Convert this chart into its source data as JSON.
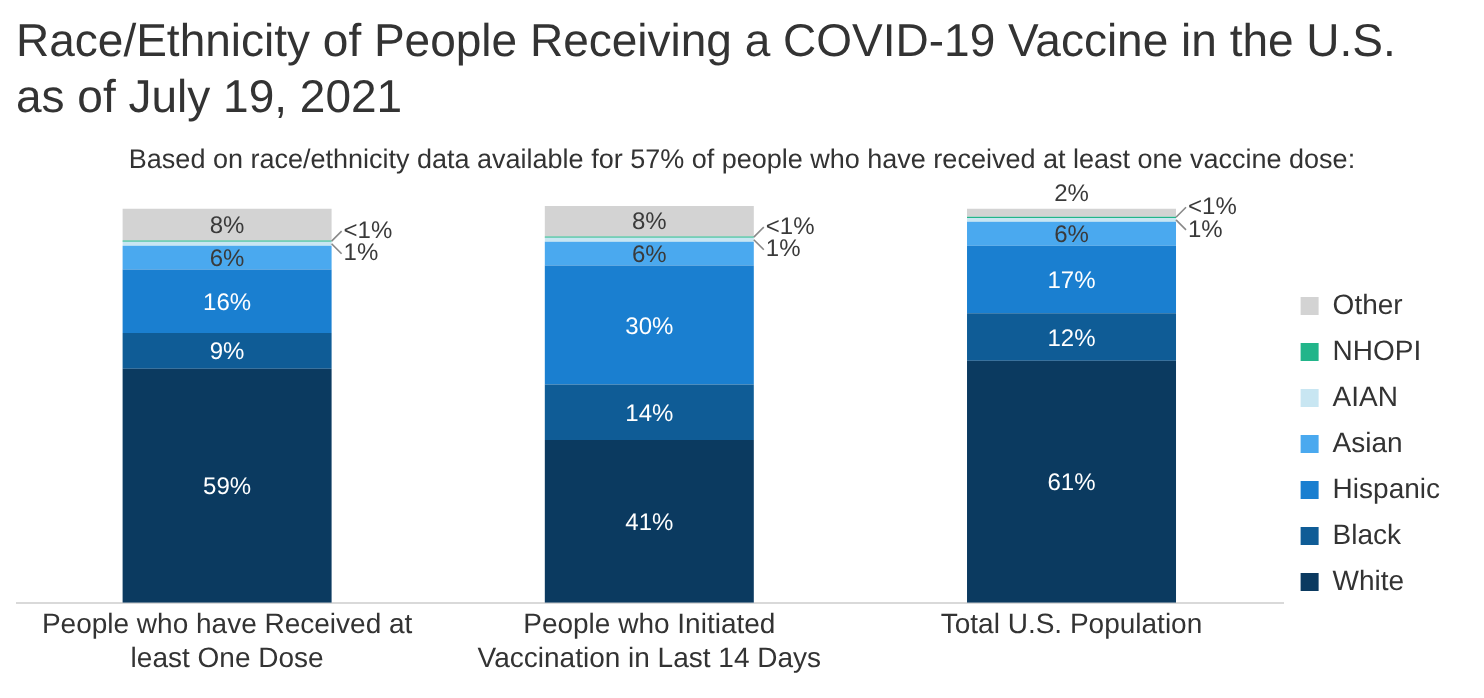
{
  "chart_data": {
    "type": "bar",
    "title": "Race/Ethnicity of People Receiving a COVID-19 Vaccine in the U.S. as of July 19, 2021",
    "subtitle": "Based on race/ethnicity data available for 57% of people who have received at least one vaccine dose:",
    "categories": [
      "People who have Received at least One Dose",
      "People who Initiated Vaccination in Last 14 Days",
      "Total U.S. Population"
    ],
    "stacked": true,
    "ylim": [
      0,
      100
    ],
    "tick_labels": "x",
    "legend": "right",
    "grid": false,
    "series": [
      {
        "name": "White",
        "color": "#0b3a60",
        "values": [
          59,
          41,
          61
        ],
        "value_labels": [
          "59%",
          "41%",
          "61%"
        ]
      },
      {
        "name": "Black",
        "color": "#0f5c96",
        "values": [
          9,
          14,
          12
        ],
        "value_labels": [
          "9%",
          "14%",
          "12%"
        ]
      },
      {
        "name": "Hispanic",
        "color": "#1a7fd0",
        "values": [
          16,
          30,
          17
        ],
        "value_labels": [
          "16%",
          "30%",
          "17%"
        ]
      },
      {
        "name": "Asian",
        "color": "#4aa9ef",
        "values": [
          6,
          6,
          6
        ],
        "value_labels": [
          "6%",
          "6%",
          "6%"
        ]
      },
      {
        "name": "AIAN",
        "color": "#c8e6f2",
        "values": [
          1,
          1,
          1
        ],
        "value_labels": [
          "1%",
          "1%",
          "1%"
        ]
      },
      {
        "name": "NHOPI",
        "color": "#22b58a",
        "values": [
          0.3,
          0.3,
          0.3
        ],
        "value_labels": [
          "<1%",
          "<1%",
          "<1%"
        ]
      },
      {
        "name": "Other",
        "color": "#d3d3d3",
        "values": [
          8,
          8,
          2
        ],
        "value_labels": [
          "8%",
          "8%",
          "2%"
        ]
      }
    ]
  }
}
